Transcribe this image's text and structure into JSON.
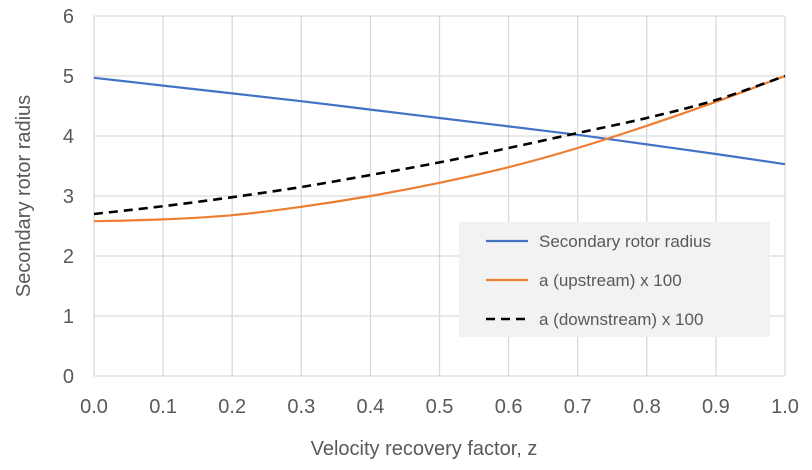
{
  "chart_data": {
    "type": "line",
    "title": "",
    "xlabel": "Velocity recovery factor, z",
    "ylabel": "Secondary rotor radius",
    "xlim": [
      0.0,
      1.0
    ],
    "ylim": [
      0,
      6
    ],
    "x_ticks": [
      "0.0",
      "0.1",
      "0.2",
      "0.3",
      "0.4",
      "0.5",
      "0.6",
      "0.7",
      "0.8",
      "0.9",
      "1.0"
    ],
    "y_ticks": [
      "0",
      "1",
      "2",
      "3",
      "4",
      "5",
      "6"
    ],
    "grid": true,
    "legend_position": "lower-right",
    "x": [
      0.0,
      0.1,
      0.2,
      0.3,
      0.4,
      0.5,
      0.6,
      0.7,
      0.8,
      0.9,
      1.0
    ],
    "series": [
      {
        "name": "Secondary rotor radius",
        "color": "#4472C4",
        "style": "solid",
        "values": [
          4.97,
          4.84,
          4.71,
          4.58,
          4.44,
          4.3,
          4.16,
          4.02,
          3.86,
          3.7,
          3.53
        ]
      },
      {
        "name": "a (upstream) x 100",
        "color": "#ED7D31",
        "style": "solid",
        "values": [
          2.58,
          2.61,
          2.68,
          2.82,
          3.0,
          3.22,
          3.48,
          3.8,
          4.17,
          4.57,
          5.0
        ]
      },
      {
        "name": "a (downstream) x 100",
        "color": "#000000",
        "style": "dashed",
        "values": [
          2.7,
          2.83,
          2.98,
          3.15,
          3.35,
          3.56,
          3.8,
          4.05,
          4.3,
          4.6,
          5.0
        ]
      }
    ]
  }
}
